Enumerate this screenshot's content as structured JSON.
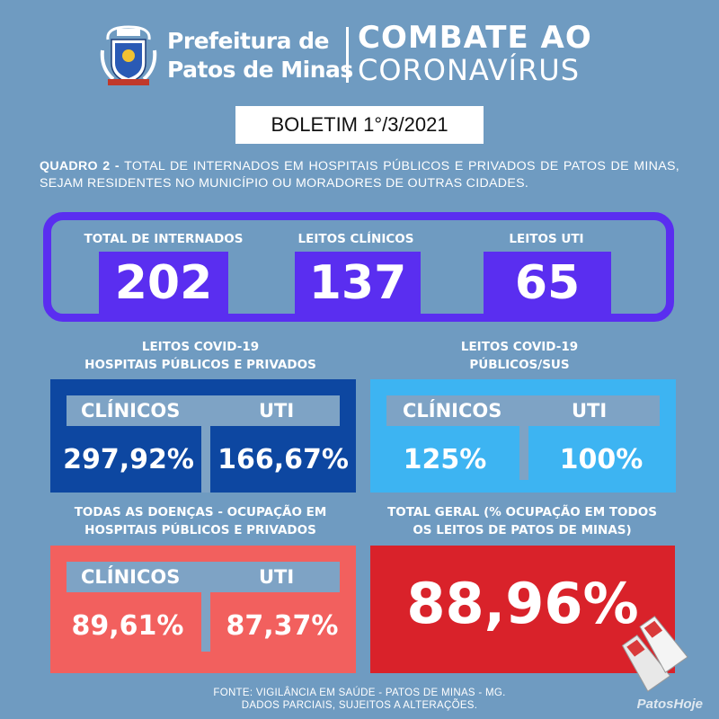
{
  "header": {
    "line1": "Prefeitura de",
    "line2": "Patos de Minas",
    "combate": "COMBATE AO",
    "coronavirus": "CORONAVÍRUS"
  },
  "boletim": "BOLETIM 1°/3/2021",
  "quadro": {
    "prefix": "QUADRO 2 -",
    "text": " TOTAL DE INTERNADOS EM HOSPITAIS PÚBLICOS E PRIVADOS DE PATOS DE MINAS, SEJAM RESIDENTES NO MUNICÍPIO OU MORADORES DE OUTRAS CIDADES."
  },
  "top": {
    "total_label": "TOTAL DE INTERNADOS",
    "total_value": "202",
    "clinicos_label": "LEITOS CLÍNICOS",
    "clinicos_value": "137",
    "uti_label": "LEITOS UTI",
    "uti_value": "65"
  },
  "covid_priv": {
    "title1": "LEITOS COVID-19",
    "title2": "HOSPITAIS PÚBLICOS E PRIVADOS",
    "clinicos_label": "CLÍNICOS",
    "uti_label": "UTI",
    "clinicos_value": "297,92%",
    "uti_value": "166,67%"
  },
  "covid_sus": {
    "title1": "LEITOS COVID-19",
    "title2": "PÚBLICOS/SUS",
    "clinicos_label": "CLÍNICOS",
    "uti_label": "UTI",
    "clinicos_value": "125%",
    "uti_value": "100%"
  },
  "todas": {
    "title1": "TODAS AS DOENÇAS - OCUPAÇÃO EM",
    "title2": "HOSPITAIS PÚBLICOS E PRIVADOS",
    "clinicos_label": "CLÍNICOS",
    "uti_label": "UTI",
    "clinicos_value": "89,61%",
    "uti_value": "87,37%"
  },
  "total_geral": {
    "title1": "TOTAL GERAL (% OCUPAÇÃO EM TODOS",
    "title2": "OS LEITOS DE PATOS DE MINAS)",
    "value": "88,96%"
  },
  "footer": {
    "line1": "FONTE: VIGILÂNCIA EM SAÚDE - PATOS DE MINAS - MG.",
    "line2": "DADOS PARCIAIS, SUJEITOS A ALTERAÇÕES."
  },
  "watermark": "PatosHoje",
  "colors": {
    "background": "#6f9bc1",
    "purple": "#5a2ef0",
    "dark_blue": "#0d47a1",
    "light_blue": "#3db4f2",
    "salmon": "#f2605e",
    "red": "#d9222a"
  },
  "icons": [
    "city-crest-icon",
    "swim-fins-icon"
  ]
}
